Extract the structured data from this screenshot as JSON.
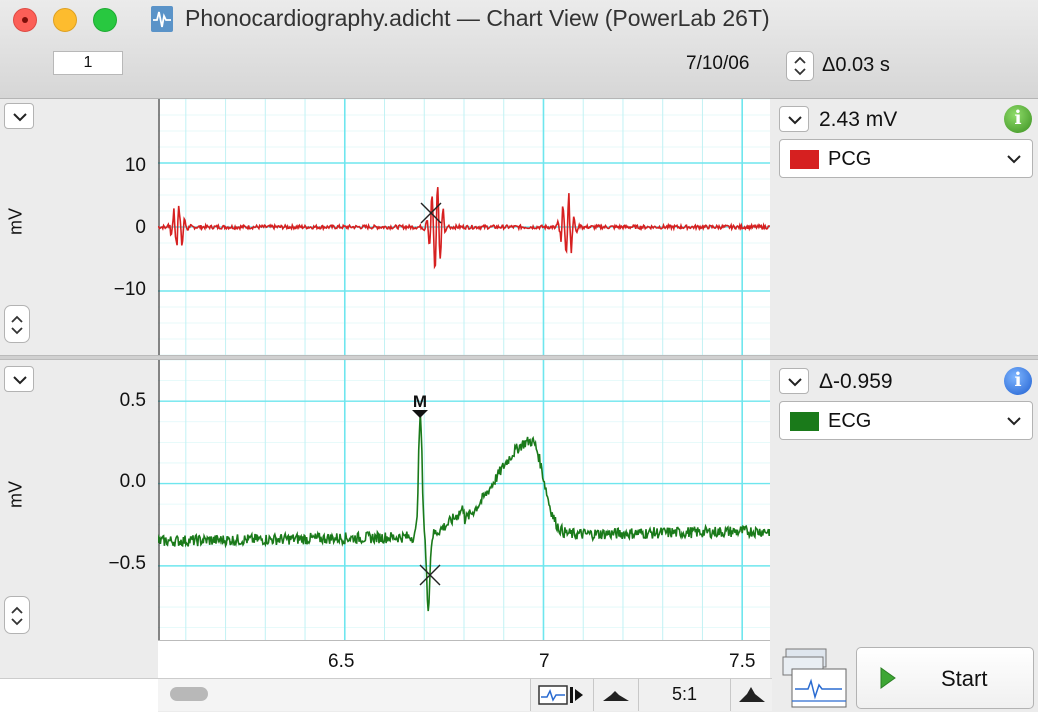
{
  "window": {
    "title": "Phonocardiography.adicht — Chart View (PowerLab 26T)",
    "page_number": "1",
    "date": "7/10/06",
    "time_delta": "Δ0.03 s"
  },
  "channels": [
    {
      "ylabel": "mV",
      "yticks": [
        "10",
        "0",
        "−10"
      ],
      "readout": "2.43 mV",
      "name": "PCG",
      "color": "#d62020",
      "info_icon": "green"
    },
    {
      "ylabel": "mV",
      "yticks": [
        "0.5",
        "0.0",
        "−0.5"
      ],
      "readout": "Δ-0.959",
      "name": "ECG",
      "color": "#1a7a1a",
      "info_icon": "blue",
      "marker": "M"
    }
  ],
  "xaxis": {
    "ticks": [
      "6.5",
      "7",
      "7.5"
    ]
  },
  "toolbar": {
    "ratio": "5:1",
    "start_label": "Start"
  },
  "chart_data": [
    {
      "type": "line",
      "title": "",
      "xlabel": "",
      "ylabel": "mV",
      "series": [
        {
          "name": "PCG",
          "color": "#d62020"
        }
      ],
      "ylim": [
        -20,
        20
      ],
      "xlim": [
        6.03,
        7.57
      ],
      "ytick_values": [
        10,
        0,
        -10
      ],
      "features": [
        {
          "x": 6.08,
          "y_range": [
            -3.5,
            2.5
          ]
        },
        {
          "x": 6.73,
          "y_range": [
            -8,
            6.5
          ]
        },
        {
          "x": 7.06,
          "y_range": [
            -7,
            3
          ]
        }
      ]
    },
    {
      "type": "line",
      "title": "",
      "xlabel": "",
      "ylabel": "mV",
      "series": [
        {
          "name": "ECG",
          "color": "#1a7a1a"
        }
      ],
      "ylim": [
        -0.95,
        0.75
      ],
      "xlim": [
        6.03,
        7.57
      ],
      "ytick_values": [
        0.5,
        0.0,
        -0.5
      ],
      "features": [
        {
          "label": "baseline",
          "y": -0.35
        },
        {
          "label": "R peak",
          "x": 6.69,
          "y": 0.37
        },
        {
          "label": "S trough",
          "x": 6.71,
          "y": -0.78
        },
        {
          "label": "T peak",
          "x": 6.97,
          "y": 0.17
        }
      ],
      "marker": {
        "label": "M",
        "x": 6.69
      }
    }
  ]
}
